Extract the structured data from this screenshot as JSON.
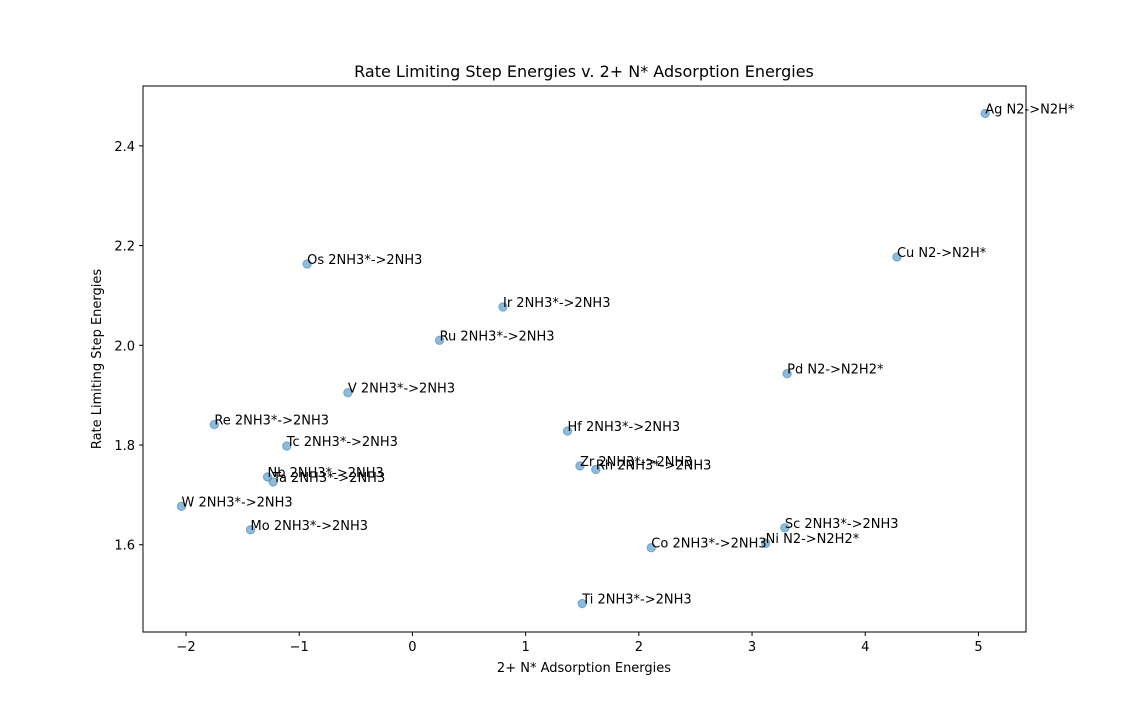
{
  "chart_data": {
    "type": "scatter",
    "title": "Rate Limiting Step Energies v. 2+ N* Adsorption Energies",
    "xlabel": "2+ N* Adsorption Energies",
    "ylabel": "Rate Limiting Step Energies",
    "xlim": [
      -2.38,
      5.42
    ],
    "ylim": [
      1.425,
      2.52
    ],
    "xticks": [
      "−2",
      "−1",
      "0",
      "1",
      "2",
      "3",
      "4",
      "5"
    ],
    "xtick_values": [
      -2,
      -1,
      0,
      1,
      2,
      3,
      4,
      5
    ],
    "yticks": [
      "1.6",
      "1.8",
      "2.0",
      "2.2",
      "2.4"
    ],
    "ytick_values": [
      1.6,
      1.8,
      2.0,
      2.2,
      2.4
    ],
    "grid": false,
    "marker_color": "#1f77b4",
    "points": [
      {
        "x": 5.06,
        "y": 2.465,
        "label": "Ag N2->N2H*"
      },
      {
        "x": 4.28,
        "y": 2.177,
        "label": "Cu N2->N2H*"
      },
      {
        "x": -0.93,
        "y": 2.163,
        "label": "Os 2NH3*->2NH3"
      },
      {
        "x": 0.8,
        "y": 2.077,
        "label": "Ir 2NH3*->2NH3"
      },
      {
        "x": 0.24,
        "y": 2.01,
        "label": "Ru 2NH3*->2NH3"
      },
      {
        "x": 3.31,
        "y": 1.943,
        "label": "Pd N2->N2H2*"
      },
      {
        "x": -0.57,
        "y": 1.905,
        "label": "V 2NH3*->2NH3"
      },
      {
        "x": -1.75,
        "y": 1.841,
        "label": "Re 2NH3*->2NH3"
      },
      {
        "x": 1.37,
        "y": 1.828,
        "label": "Hf 2NH3*->2NH3"
      },
      {
        "x": -1.11,
        "y": 1.798,
        "label": "Tc 2NH3*->2NH3"
      },
      {
        "x": 1.48,
        "y": 1.758,
        "label": "Zr 2NH3*->2NH3"
      },
      {
        "x": 1.62,
        "y": 1.751,
        "label": "Rh 2NH3*->2NH3"
      },
      {
        "x": -1.28,
        "y": 1.736,
        "label": "Nb 2NH3*->2NH3"
      },
      {
        "x": -1.23,
        "y": 1.726,
        "label": "Ta 2NH3*->2NH3"
      },
      {
        "x": -2.04,
        "y": 1.677,
        "label": "W 2NH3*->2NH3"
      },
      {
        "x": 3.29,
        "y": 1.634,
        "label": "Sc 2NH3*->2NH3"
      },
      {
        "x": -1.43,
        "y": 1.63,
        "label": "Mo 2NH3*->2NH3"
      },
      {
        "x": 3.12,
        "y": 1.603,
        "label": "Ni N2->N2H2*"
      },
      {
        "x": 2.11,
        "y": 1.594,
        "label": "Co 2NH3*->2NH3"
      },
      {
        "x": 1.5,
        "y": 1.482,
        "label": "Ti 2NH3*->2NH3"
      }
    ]
  }
}
